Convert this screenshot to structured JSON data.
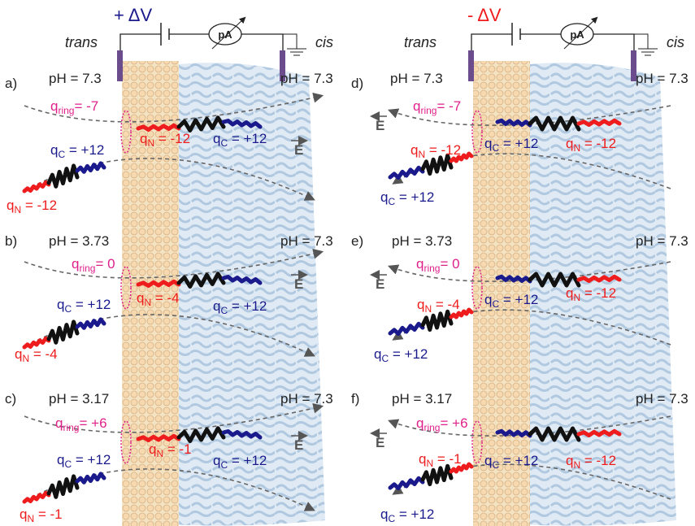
{
  "columns": [
    {
      "voltage": "+ ΔV",
      "trans": "trans",
      "cis": "cis",
      "meter": "pA",
      "panels": [
        {
          "label": "a)",
          "ph_trans": "pH = 7.3",
          "ph_cis": "pH = 7.3",
          "field": "E",
          "ring": {
            "symbol": "q",
            "sub": "ring",
            "text": "= -7"
          },
          "charges": [
            {
              "symbol": "q",
              "sub": "N",
              "text": " = -12",
              "color": "#ee1c1c"
            },
            {
              "symbol": "q",
              "sub": "C",
              "text": " = +12",
              "color": "#1a1a8c"
            },
            {
              "symbol": "q",
              "sub": "C",
              "text": " = +12",
              "color": "#1a1a8c"
            },
            {
              "symbol": "q",
              "sub": "N",
              "text": " = -12",
              "color": "#ee1c1c"
            }
          ]
        },
        {
          "label": "b)",
          "ph_trans": "pH = 3.73",
          "ph_cis": "pH = 7.3",
          "field": "E",
          "ring": {
            "symbol": "q",
            "sub": "ring",
            "text": "= 0"
          },
          "charges": [
            {
              "symbol": "q",
              "sub": "N",
              "text": " = -4",
              "color": "#ee1c1c"
            },
            {
              "symbol": "q",
              "sub": "C",
              "text": " = +12",
              "color": "#1a1a8c"
            },
            {
              "symbol": "q",
              "sub": "C",
              "text": " = +12",
              "color": "#1a1a8c"
            },
            {
              "symbol": "q",
              "sub": "N",
              "text": " = -4",
              "color": "#ee1c1c"
            }
          ]
        },
        {
          "label": "c)",
          "ph_trans": "pH = 3.17",
          "ph_cis": "pH = 7.3",
          "field": "E",
          "ring": {
            "symbol": "q",
            "sub": "ring",
            "text": "= +6"
          },
          "charges": [
            {
              "symbol": "q",
              "sub": "N",
              "text": " = -1",
              "color": "#ee1c1c"
            },
            {
              "symbol": "q",
              "sub": "C",
              "text": " = +12",
              "color": "#1a1a8c"
            },
            {
              "symbol": "q",
              "sub": "C",
              "text": " = +12",
              "color": "#1a1a8c"
            },
            {
              "symbol": "q",
              "sub": "N",
              "text": " = -1",
              "color": "#ee1c1c"
            }
          ]
        }
      ]
    },
    {
      "voltage": "- ΔV",
      "trans": "trans",
      "cis": "cis",
      "meter": "pA",
      "panels": [
        {
          "label": "d)",
          "ph_trans": "pH = 7.3",
          "ph_cis": "pH = 7.3",
          "field": "E",
          "ring": {
            "symbol": "q",
            "sub": "ring",
            "text": "= -7"
          },
          "charges": [
            {
              "symbol": "q",
              "sub": "C",
              "text": " = +12",
              "color": "#1a1a8c"
            },
            {
              "symbol": "q",
              "sub": "N",
              "text": " = -12",
              "color": "#ee1c1c"
            },
            {
              "symbol": "q",
              "sub": "N",
              "text": " = -12",
              "color": "#ee1c1c"
            },
            {
              "symbol": "q",
              "sub": "C",
              "text": " = +12",
              "color": "#1a1a8c"
            }
          ]
        },
        {
          "label": "e)",
          "ph_trans": "pH = 3.73",
          "ph_cis": "pH = 7.3",
          "field": "E",
          "ring": {
            "symbol": "q",
            "sub": "ring",
            "text": "= 0"
          },
          "charges": [
            {
              "symbol": "q",
              "sub": "C",
              "text": " = +12",
              "color": "#1a1a8c"
            },
            {
              "symbol": "q",
              "sub": "N",
              "text": " = -12",
              "color": "#ee1c1c"
            },
            {
              "symbol": "q",
              "sub": "N",
              "text": " = -4",
              "color": "#ee1c1c"
            },
            {
              "symbol": "q",
              "sub": "C",
              "text": " = +12",
              "color": "#1a1a8c"
            }
          ]
        },
        {
          "label": "f)",
          "ph_trans": "pH = 3.17",
          "ph_cis": "pH = 7.3",
          "field": "E",
          "ring": {
            "symbol": "q",
            "sub": "ring",
            "text": "= +6"
          },
          "charges": [
            {
              "symbol": "q",
              "sub": "C",
              "text": " = +12",
              "color": "#1a1a8c"
            },
            {
              "symbol": "q",
              "sub": "N",
              "text": " = -12",
              "color": "#ee1c1c"
            },
            {
              "symbol": "q",
              "sub": "N",
              "text": " = -1",
              "color": "#ee1c1c"
            },
            {
              "symbol": "q",
              "sub": "C",
              "text": " = +12",
              "color": "#1a1a8c"
            }
          ]
        }
      ]
    }
  ]
}
